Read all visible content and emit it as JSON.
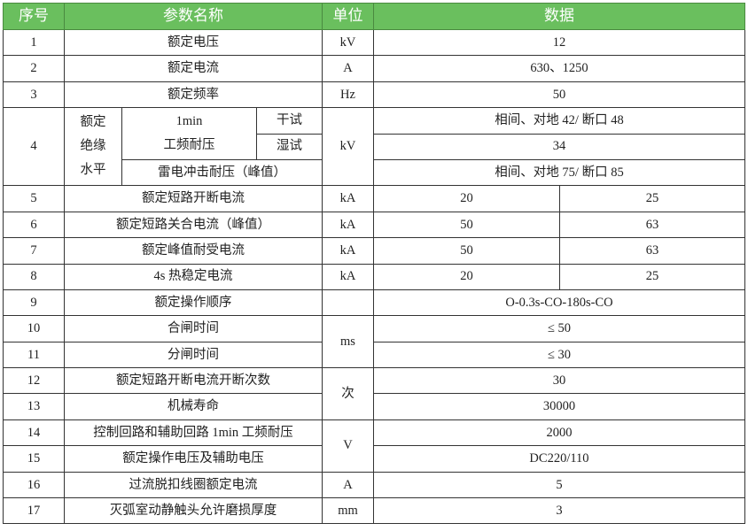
{
  "header": {
    "no": "序号",
    "name": "参数名称",
    "unit": "单位",
    "data": "数据"
  },
  "rows": {
    "r1": {
      "no": "1",
      "name": "额定电压",
      "unit": "kV",
      "value": "12"
    },
    "r2": {
      "no": "2",
      "name": "额定电流",
      "unit": "A",
      "value": "630、1250"
    },
    "r3": {
      "no": "3",
      "name": "额定频率",
      "unit": "Hz",
      "value": "50"
    },
    "r4": {
      "no": "4",
      "group_1": "额定",
      "group_2": "绝缘",
      "group_3": "水平",
      "freq_1": "1min",
      "freq_2": "工频耐压",
      "dry": "干试",
      "wet": "湿试",
      "lightning": "雷电冲击耐压（峰值）",
      "unit": "kV",
      "dry_value": "相间、对地 42/ 断口 48",
      "wet_value": "34",
      "lightning_value": "相间、对地 75/ 断口 85"
    },
    "r5": {
      "no": "5",
      "name": "额定短路开断电流",
      "unit": "kA",
      "v1": "20",
      "v2": "25"
    },
    "r6": {
      "no": "6",
      "name": "额定短路关合电流（峰值）",
      "unit": "kA",
      "v1": "50",
      "v2": "63"
    },
    "r7": {
      "no": "7",
      "name": "额定峰值耐受电流",
      "unit": "kA",
      "v1": "50",
      "v2": "63"
    },
    "r8": {
      "no": "8",
      "name": "4s 热稳定电流",
      "unit": "kA",
      "v1": "20",
      "v2": "25"
    },
    "r9": {
      "no": "9",
      "name": "额定操作顺序",
      "unit": "",
      "value": "O-0.3s-CO-180s-CO"
    },
    "r10": {
      "no": "10",
      "name": "合闸时间",
      "unit": "ms",
      "value": "≤ 50"
    },
    "r11": {
      "no": "11",
      "name": "分闸时间",
      "value": "≤ 30"
    },
    "r12": {
      "no": "12",
      "name": "额定短路开断电流开断次数",
      "unit": "次",
      "value": "30"
    },
    "r13": {
      "no": "13",
      "name": "机械寿命",
      "value": "30000"
    },
    "r14": {
      "no": "14",
      "name": "控制回路和辅助回路 1min 工频耐压",
      "unit": "V",
      "value": "2000"
    },
    "r15": {
      "no": "15",
      "name": "额定操作电压及辅助电压",
      "value": "DC220/110"
    },
    "r16": {
      "no": "16",
      "name": "过流脱扣线圈额定电流",
      "unit": "A",
      "value": "5"
    },
    "r17": {
      "no": "17",
      "name": "灭弧室动静触头允许磨损厚度",
      "unit": "mm",
      "value": "3"
    }
  },
  "colors": {
    "header_bg": "#6abf5e",
    "header_text": "#ffffff",
    "border": "#333333"
  }
}
